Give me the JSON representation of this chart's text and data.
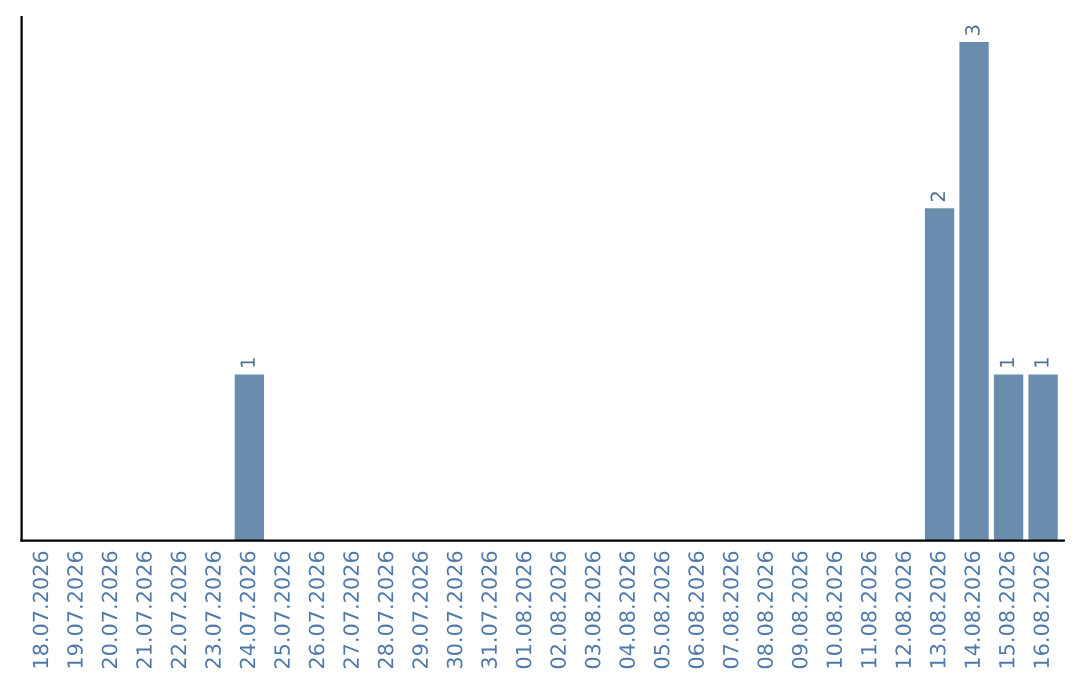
{
  "chart_data": {
    "type": "bar",
    "categories": [
      "18.07.2026",
      "19.07.2026",
      "20.07.2026",
      "21.07.2026",
      "22.07.2026",
      "23.07.2026",
      "24.07.2026",
      "25.07.2026",
      "26.07.2026",
      "27.07.2026",
      "28.07.2026",
      "29.07.2026",
      "30.07.2026",
      "31.07.2026",
      "01.08.2026",
      "02.08.2026",
      "03.08.2026",
      "04.08.2026",
      "05.08.2026",
      "06.08.2026",
      "07.08.2026",
      "08.08.2026",
      "09.08.2026",
      "10.08.2026",
      "11.08.2026",
      "12.08.2026",
      "13.08.2026",
      "14.08.2026",
      "15.08.2026",
      "16.08.2026"
    ],
    "values": [
      0,
      0,
      0,
      0,
      0,
      0,
      1,
      0,
      0,
      0,
      0,
      0,
      0,
      0,
      0,
      0,
      0,
      0,
      0,
      0,
      0,
      0,
      0,
      0,
      0,
      0,
      2,
      3,
      1,
      1
    ],
    "value_labels": [
      null,
      null,
      null,
      null,
      null,
      null,
      "1",
      null,
      null,
      null,
      null,
      null,
      null,
      null,
      null,
      null,
      null,
      null,
      null,
      null,
      null,
      null,
      null,
      null,
      null,
      null,
      "2",
      "3",
      "1",
      "1"
    ],
    "color": "#6a8cad",
    "tick_labels": "x",
    "grid": false,
    "legend": false
  }
}
